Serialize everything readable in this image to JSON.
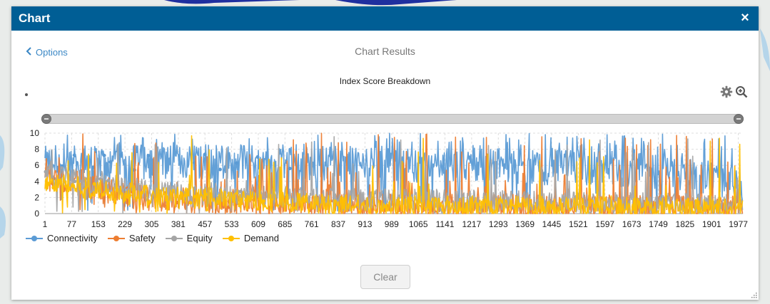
{
  "dialog": {
    "title": "Chart",
    "close_glyph": "×",
    "close_icon": "close-icon",
    "back_label": "Options",
    "back_icon": "chevron-left-icon",
    "results_title": "Chart Results",
    "settings_icon": "gear-icon",
    "zoom_icon": "zoom-in-icon",
    "clear_label": "Clear",
    "resize_icon": "resize-grip-icon"
  },
  "colors": {
    "header": "#005e95",
    "link": "#3a87c5",
    "connectivity": "#5b9bd5",
    "safety": "#ed7d31",
    "equity": "#a5a5a5",
    "demand": "#ffc000"
  },
  "chart_data": {
    "type": "line",
    "title": "Index Score Breakdown",
    "xlabel": "",
    "ylabel": "",
    "ylim": [
      0,
      10
    ],
    "yticks": [
      0,
      2,
      4,
      6,
      8,
      10
    ],
    "xlim": [
      1,
      1990
    ],
    "xticks": [
      "1",
      "77",
      "153",
      "229",
      "305",
      "381",
      "457",
      "533",
      "609",
      "685",
      "761",
      "837",
      "913",
      "989",
      "1065",
      "1141",
      "1217",
      "1293",
      "1369",
      "1445",
      "1521",
      "1597",
      "1673",
      "1749",
      "1825",
      "1901",
      "1977"
    ],
    "grid": true,
    "legend_position": "bottom-left",
    "series": [
      {
        "name": "Connectivity",
        "color": "#5b9bd5",
        "trend": [
          [
            1,
            6.2
          ],
          [
            300,
            6.5
          ],
          [
            700,
            6.3
          ],
          [
            1100,
            6.0
          ],
          [
            1500,
            5.7
          ],
          [
            1800,
            5.2
          ],
          [
            1990,
            3.5
          ]
        ],
        "spread": 2.2,
        "spikes": 0.18
      },
      {
        "name": "Safety",
        "color": "#ed7d31",
        "trend": [
          [
            1,
            4.5
          ],
          [
            300,
            1.8
          ],
          [
            800,
            1.0
          ],
          [
            1500,
            0.8
          ],
          [
            1990,
            0.6
          ]
        ],
        "spread": 1.6,
        "spikes": 0.12
      },
      {
        "name": "Equity",
        "color": "#a5a5a5",
        "trend": [
          [
            1,
            5.0
          ],
          [
            300,
            2.8
          ],
          [
            800,
            1.8
          ],
          [
            1500,
            1.4
          ],
          [
            1990,
            1.0
          ]
        ],
        "spread": 1.4,
        "spikes": 0.05
      },
      {
        "name": "Demand",
        "color": "#ffc000",
        "trend": [
          [
            1,
            3.8
          ],
          [
            300,
            2.2
          ],
          [
            800,
            1.2
          ],
          [
            1500,
            0.8
          ],
          [
            1990,
            0.6
          ]
        ],
        "spread": 1.3,
        "spikes": 0.04
      }
    ]
  }
}
